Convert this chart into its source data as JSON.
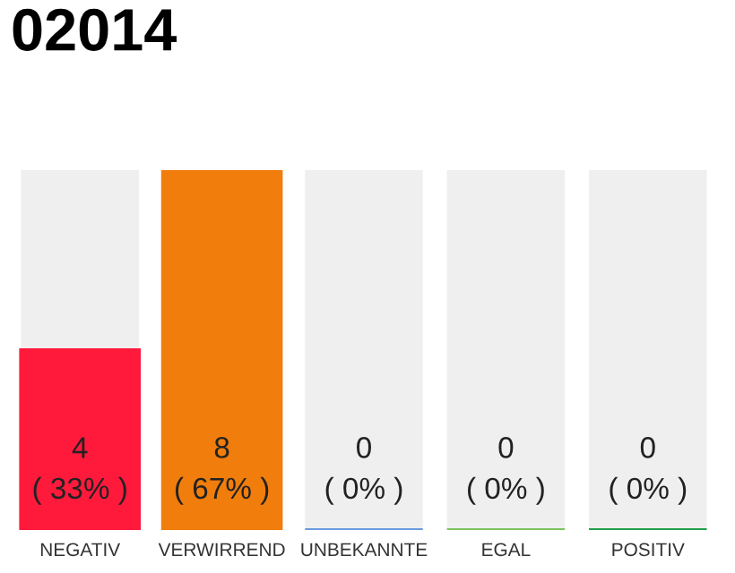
{
  "chart_data": {
    "type": "bar",
    "title": "02014",
    "categories": [
      "NEGATIV",
      "VERWIRREND",
      "UNBEKANNTE",
      "EGAL",
      "POSITIV"
    ],
    "values": [
      4,
      8,
      0,
      0,
      0
    ],
    "colors": [
      "#ff1a3c",
      "#f07d0c",
      "#6a9be0",
      "#7cc35e",
      "#22a04a"
    ],
    "ylim": [
      0,
      8
    ],
    "tick_labels": "x",
    "grid": false,
    "legend": false,
    "value_labels": [
      "4\n( 33% )",
      "8\n( 67% )",
      "0\n( 0% )",
      "0\n( 0% )",
      "0\n( 0% )"
    ]
  }
}
